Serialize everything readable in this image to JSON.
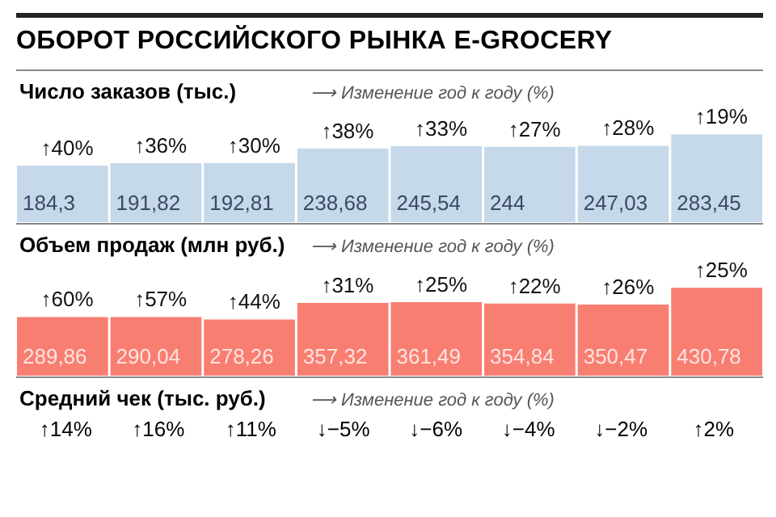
{
  "chart_data": [
    {
      "type": "other",
      "title": "ОБОРОТ РОССИЙСКОГО РЫНКА E-GROCERY"
    },
    {
      "type": "bar",
      "title": "Число заказов (тыс.)",
      "subtitle": "⟶ Изменение год к году (%)",
      "categories": [
        null,
        null,
        null,
        null,
        null,
        null,
        null,
        null
      ],
      "values": [
        184.3,
        191.82,
        192.81,
        238.68,
        245.54,
        244,
        247.03,
        283.45
      ],
      "value_labels": [
        "184,3",
        "191,82",
        "192,81",
        "238,68",
        "245,54",
        "244",
        "247,03",
        "283,45"
      ],
      "color": "#c6d9ea",
      "annotations": [
        "↑40%",
        "↑36%",
        "↑30%",
        "↑38%",
        "↑33%",
        "↑27%",
        "↑28%",
        "↑19%"
      ]
    },
    {
      "type": "bar",
      "title": "Объем продаж (млн руб.)",
      "subtitle": "⟶ Изменение год к году (%)",
      "categories": [
        null,
        null,
        null,
        null,
        null,
        null,
        null,
        null
      ],
      "values": [
        289.86,
        290.04,
        278.26,
        357.32,
        361.49,
        354.84,
        350.47,
        430.78
      ],
      "value_labels": [
        "289,86",
        "290,04",
        "278,26",
        "357,32",
        "361,49",
        "354,84",
        "350,47",
        "430,78"
      ],
      "color": "#f97e72",
      "annotations": [
        "↑60%",
        "↑57%",
        "↑44%",
        "↑31%",
        "↑25%",
        "↑22%",
        "↑26%",
        "↑25%"
      ]
    },
    {
      "type": "other",
      "title": "Средний чек (тыс. руб.)",
      "subtitle": "⟶ Изменение год к году (%)",
      "annotations": [
        "↑14%",
        "↑16%",
        "↑11%",
        "↓−5%",
        "↓−6%",
        "↓−4%",
        "↓−2%",
        "↑2%"
      ]
    }
  ]
}
